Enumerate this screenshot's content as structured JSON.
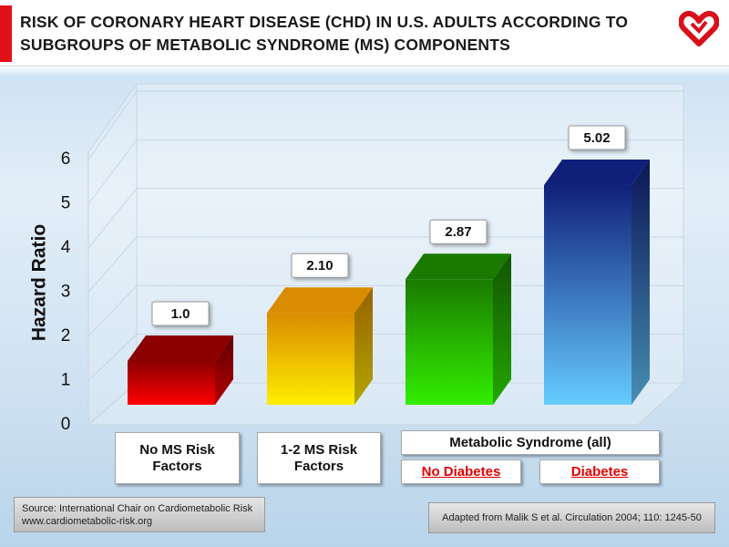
{
  "title": "RISK OF CORONARY HEART DISEASE (CHD) IN U.S. ADULTS ACCORDING TO SUBGROUPS OF METABOLIC SYNDROME (MS) COMPONENTS",
  "chart_data": {
    "type": "bar3d",
    "y_label": "Hazard Ratio",
    "categories": [
      "No MS Risk Factors",
      "1-2 MS Risk Factors",
      "No Diabetes",
      "Diabetes"
    ],
    "group_label": "Metabolic Syndrome (all)",
    "values": [
      1.0,
      2.1,
      2.87,
      5.02
    ],
    "value_labels": [
      "1.0",
      "2.10",
      "2.87",
      "5.02"
    ],
    "colors": [
      [
        "#8c0000",
        "#ff0000"
      ],
      [
        "#d98c00",
        "#ffee00"
      ],
      [
        "#1a7a00",
        "#33ee00"
      ],
      [
        "#10207a",
        "#66ccff"
      ]
    ],
    "ylim": [
      0,
      6
    ],
    "yticks": [
      0,
      1,
      2,
      3,
      4,
      5,
      6
    ],
    "grid": true
  },
  "footer": {
    "source": "Source: International Chair on Cardiometabolic Risk",
    "website": "www.cardiometabolic-risk.org",
    "citation": "Adapted from Malik S et al. Circulation 2004; 110: 1245-50"
  }
}
